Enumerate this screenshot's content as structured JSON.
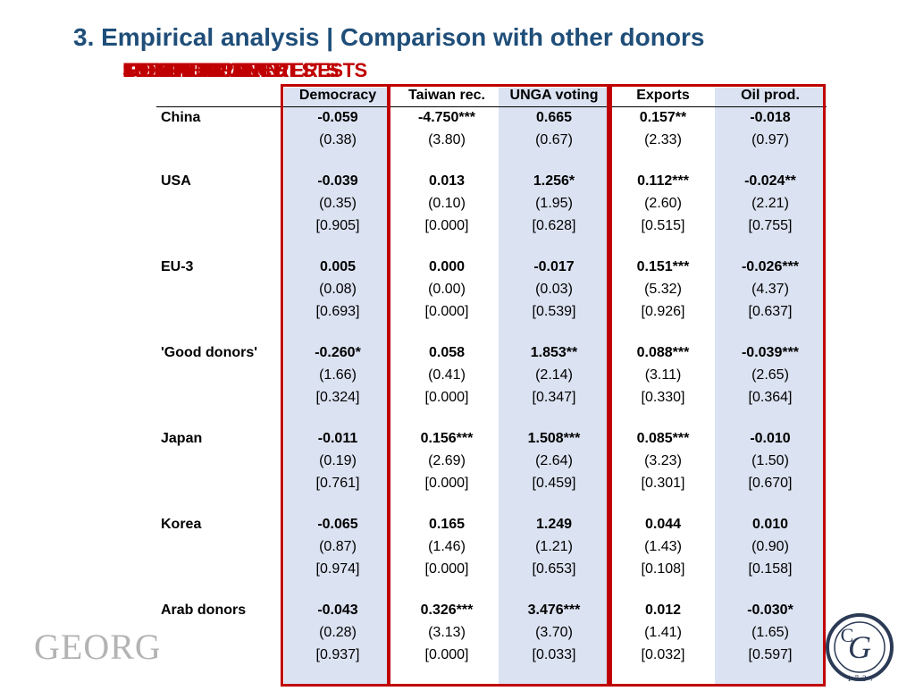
{
  "title": "3. Empirical analysis | Comparison with other donors",
  "overlapping_labels": [
    "FOREIGN POLICY",
    "COMMERCIAL INTERESTS",
    "RECIPIENT NEED",
    "SELF-INTEREST",
    "DONOR MOTIVES",
    "POLITICAL INTERESTS"
  ],
  "columns": [
    "Democracy",
    "Taiwan rec.",
    "UNGA voting",
    "Exports",
    "Oil prod."
  ],
  "rows": [
    {
      "label": "China",
      "coef": [
        "-0.059",
        "-4.750***",
        "0.665",
        "0.157**",
        "-0.018"
      ],
      "tstat": [
        "(0.38)",
        "(3.80)",
        "(0.67)",
        "(2.33)",
        "(0.97)"
      ],
      "pval": []
    },
    {
      "label": "USA",
      "coef": [
        "-0.039",
        "0.013",
        "1.256*",
        "0.112***",
        "-0.024**"
      ],
      "tstat": [
        "(0.35)",
        "(0.10)",
        "(1.95)",
        "(2.60)",
        "(2.21)"
      ],
      "pval": [
        "[0.905]",
        "[0.000]",
        "[0.628]",
        "[0.515]",
        "[0.755]"
      ]
    },
    {
      "label": "EU-3",
      "coef": [
        "0.005",
        "0.000",
        "-0.017",
        "0.151***",
        "-0.026***"
      ],
      "tstat": [
        "(0.08)",
        "(0.00)",
        "(0.03)",
        "(5.32)",
        "(4.37)"
      ],
      "pval": [
        "[0.693]",
        "[0.000]",
        "[0.539]",
        "[0.926]",
        "[0.637]"
      ]
    },
    {
      "label": "'Good donors'",
      "coef": [
        "-0.260*",
        "0.058",
        "1.853**",
        "0.088***",
        "-0.039***"
      ],
      "tstat": [
        "(1.66)",
        "(0.41)",
        "(2.14)",
        "(3.11)",
        "(2.65)"
      ],
      "pval": [
        "[0.324]",
        "[0.000]",
        "[0.347]",
        "[0.330]",
        "[0.364]"
      ]
    },
    {
      "label": "Japan",
      "coef": [
        "-0.011",
        "0.156***",
        "1.508***",
        "0.085***",
        "-0.010"
      ],
      "tstat": [
        "(0.19)",
        "(2.69)",
        "(2.64)",
        "(3.23)",
        "(1.50)"
      ],
      "pval": [
        "[0.761]",
        "[0.000]",
        "[0.459]",
        "[0.301]",
        "[0.670]"
      ]
    },
    {
      "label": "Korea",
      "coef": [
        "-0.065",
        "0.165",
        "1.249",
        "0.044",
        "0.010"
      ],
      "tstat": [
        "(0.87)",
        "(1.46)",
        "(1.21)",
        "(1.43)",
        "(0.90)"
      ],
      "pval": [
        "[0.974]",
        "[0.000]",
        "[0.653]",
        "[0.108]",
        "[0.158]"
      ]
    },
    {
      "label": "Arab donors",
      "coef": [
        "-0.043",
        "0.326***",
        "3.476***",
        "0.012",
        "-0.030*"
      ],
      "tstat": [
        "(0.28)",
        "(3.13)",
        "(3.70)",
        "(1.41)",
        "(1.65)"
      ],
      "pval": [
        "[0.937]",
        "[0.000]",
        "[0.033]",
        "[0.032]",
        "[0.597]"
      ]
    }
  ],
  "logo_left_text": "GEORG",
  "logo_right_text": "1737",
  "colors": {
    "title": "#1f4e79",
    "accent_red": "#c00000",
    "shade": "#dbe2f1"
  }
}
